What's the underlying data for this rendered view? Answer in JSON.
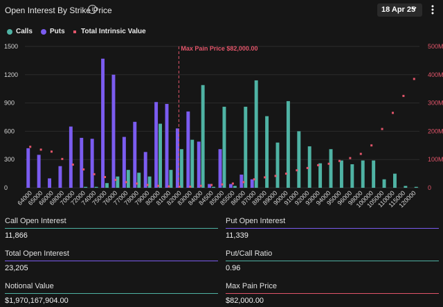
{
  "header": {
    "title": "Open Interest By Strike Price",
    "info_icon": "i",
    "date": "18 Apr 25",
    "date_chevron": "chevron-down-icon",
    "menu_icon": "kebab-icon"
  },
  "legend": {
    "calls": "Calls",
    "puts": "Puts",
    "intrinsic": "Total Intrinsic Value"
  },
  "colors": {
    "calls": "#4fb3a4",
    "puts": "#7b5cf0",
    "intrinsic": "#e2556a",
    "max_pain_line": "#e2556a",
    "grid": "#2c2c2c",
    "axis_text": "#d6d6d6",
    "right_axis_text": "#e2556a"
  },
  "chart_data": {
    "type": "bar",
    "categories": [
      "64000",
      "65000",
      "66000",
      "68000",
      "70000",
      "72000",
      "74000",
      "75000",
      "76000",
      "77000",
      "78000",
      "79000",
      "80000",
      "81000",
      "82000",
      "83000",
      "84000",
      "84500",
      "85000",
      "85500",
      "86000",
      "87000",
      "88000",
      "89000",
      "90000",
      "91000",
      "92000",
      "93000",
      "94000",
      "95000",
      "96000",
      "98000",
      "100000",
      "105000",
      "110000",
      "115000",
      "120000"
    ],
    "series": [
      {
        "name": "Calls",
        "axis": "left",
        "values": [
          0,
          0,
          0,
          0,
          0,
          10,
          10,
          50,
          120,
          190,
          160,
          120,
          680,
          190,
          410,
          510,
          1090,
          10,
          860,
          20,
          860,
          1140,
          760,
          480,
          920,
          600,
          440,
          260,
          410,
          290,
          250,
          290,
          290,
          90,
          150,
          20,
          10
        ]
      },
      {
        "name": "Puts",
        "axis": "left",
        "values": [
          420,
          350,
          100,
          230,
          650,
          530,
          520,
          1370,
          1200,
          540,
          700,
          380,
          910,
          890,
          630,
          810,
          490,
          40,
          410,
          40,
          140,
          90,
          0,
          0,
          0,
          0,
          0,
          0,
          0,
          0,
          0,
          0,
          0,
          0,
          0,
          0,
          0
        ]
      },
      {
        "name": "Total Intrinsic Value",
        "axis": "right",
        "values": [
          145000000,
          135000000,
          128000000,
          102000000,
          82000000,
          65000000,
          48000000,
          38000000,
          28000000,
          20000000,
          15000000,
          10000000,
          7000000,
          5000000,
          4000000,
          4000000,
          7000000,
          10000000,
          12000000,
          15000000,
          20000000,
          30000000,
          37000000,
          42000000,
          50000000,
          62000000,
          70000000,
          80000000,
          85000000,
          95000000,
          105000000,
          120000000,
          150000000,
          208000000,
          265000000,
          325000000,
          385000000
        ]
      }
    ],
    "left_axis": {
      "ticks": [
        0,
        300,
        600,
        900,
        1200,
        1500
      ],
      "labels": [
        "0",
        "300",
        "600",
        "900",
        "1200",
        "1500"
      ],
      "range": [
        0,
        1500
      ]
    },
    "right_axis": {
      "ticks": [
        0,
        100000000,
        200000000,
        300000000,
        400000000,
        500000000
      ],
      "labels": [
        "0",
        "100M",
        "200M",
        "300M",
        "400M",
        "500M"
      ],
      "range": [
        0,
        500000000
      ]
    },
    "max_pain": {
      "category": "82000",
      "label": "Max Pain Price $82,000.00"
    },
    "grid": true,
    "legend_position": "top-left"
  },
  "stats": {
    "call_oi": {
      "label": "Call Open Interest",
      "value": "11,866"
    },
    "put_oi": {
      "label": "Put Open Interest",
      "value": "11,339"
    },
    "total_oi": {
      "label": "Total Open Interest",
      "value": "23,205"
    },
    "pc_ratio": {
      "label": "Put/Call Ratio",
      "value": "0.96"
    },
    "notional": {
      "label": "Notional Value",
      "value": "$1,970,167,904.00"
    },
    "max_pain": {
      "label": "Max Pain Price",
      "value": "$82,000.00"
    }
  }
}
